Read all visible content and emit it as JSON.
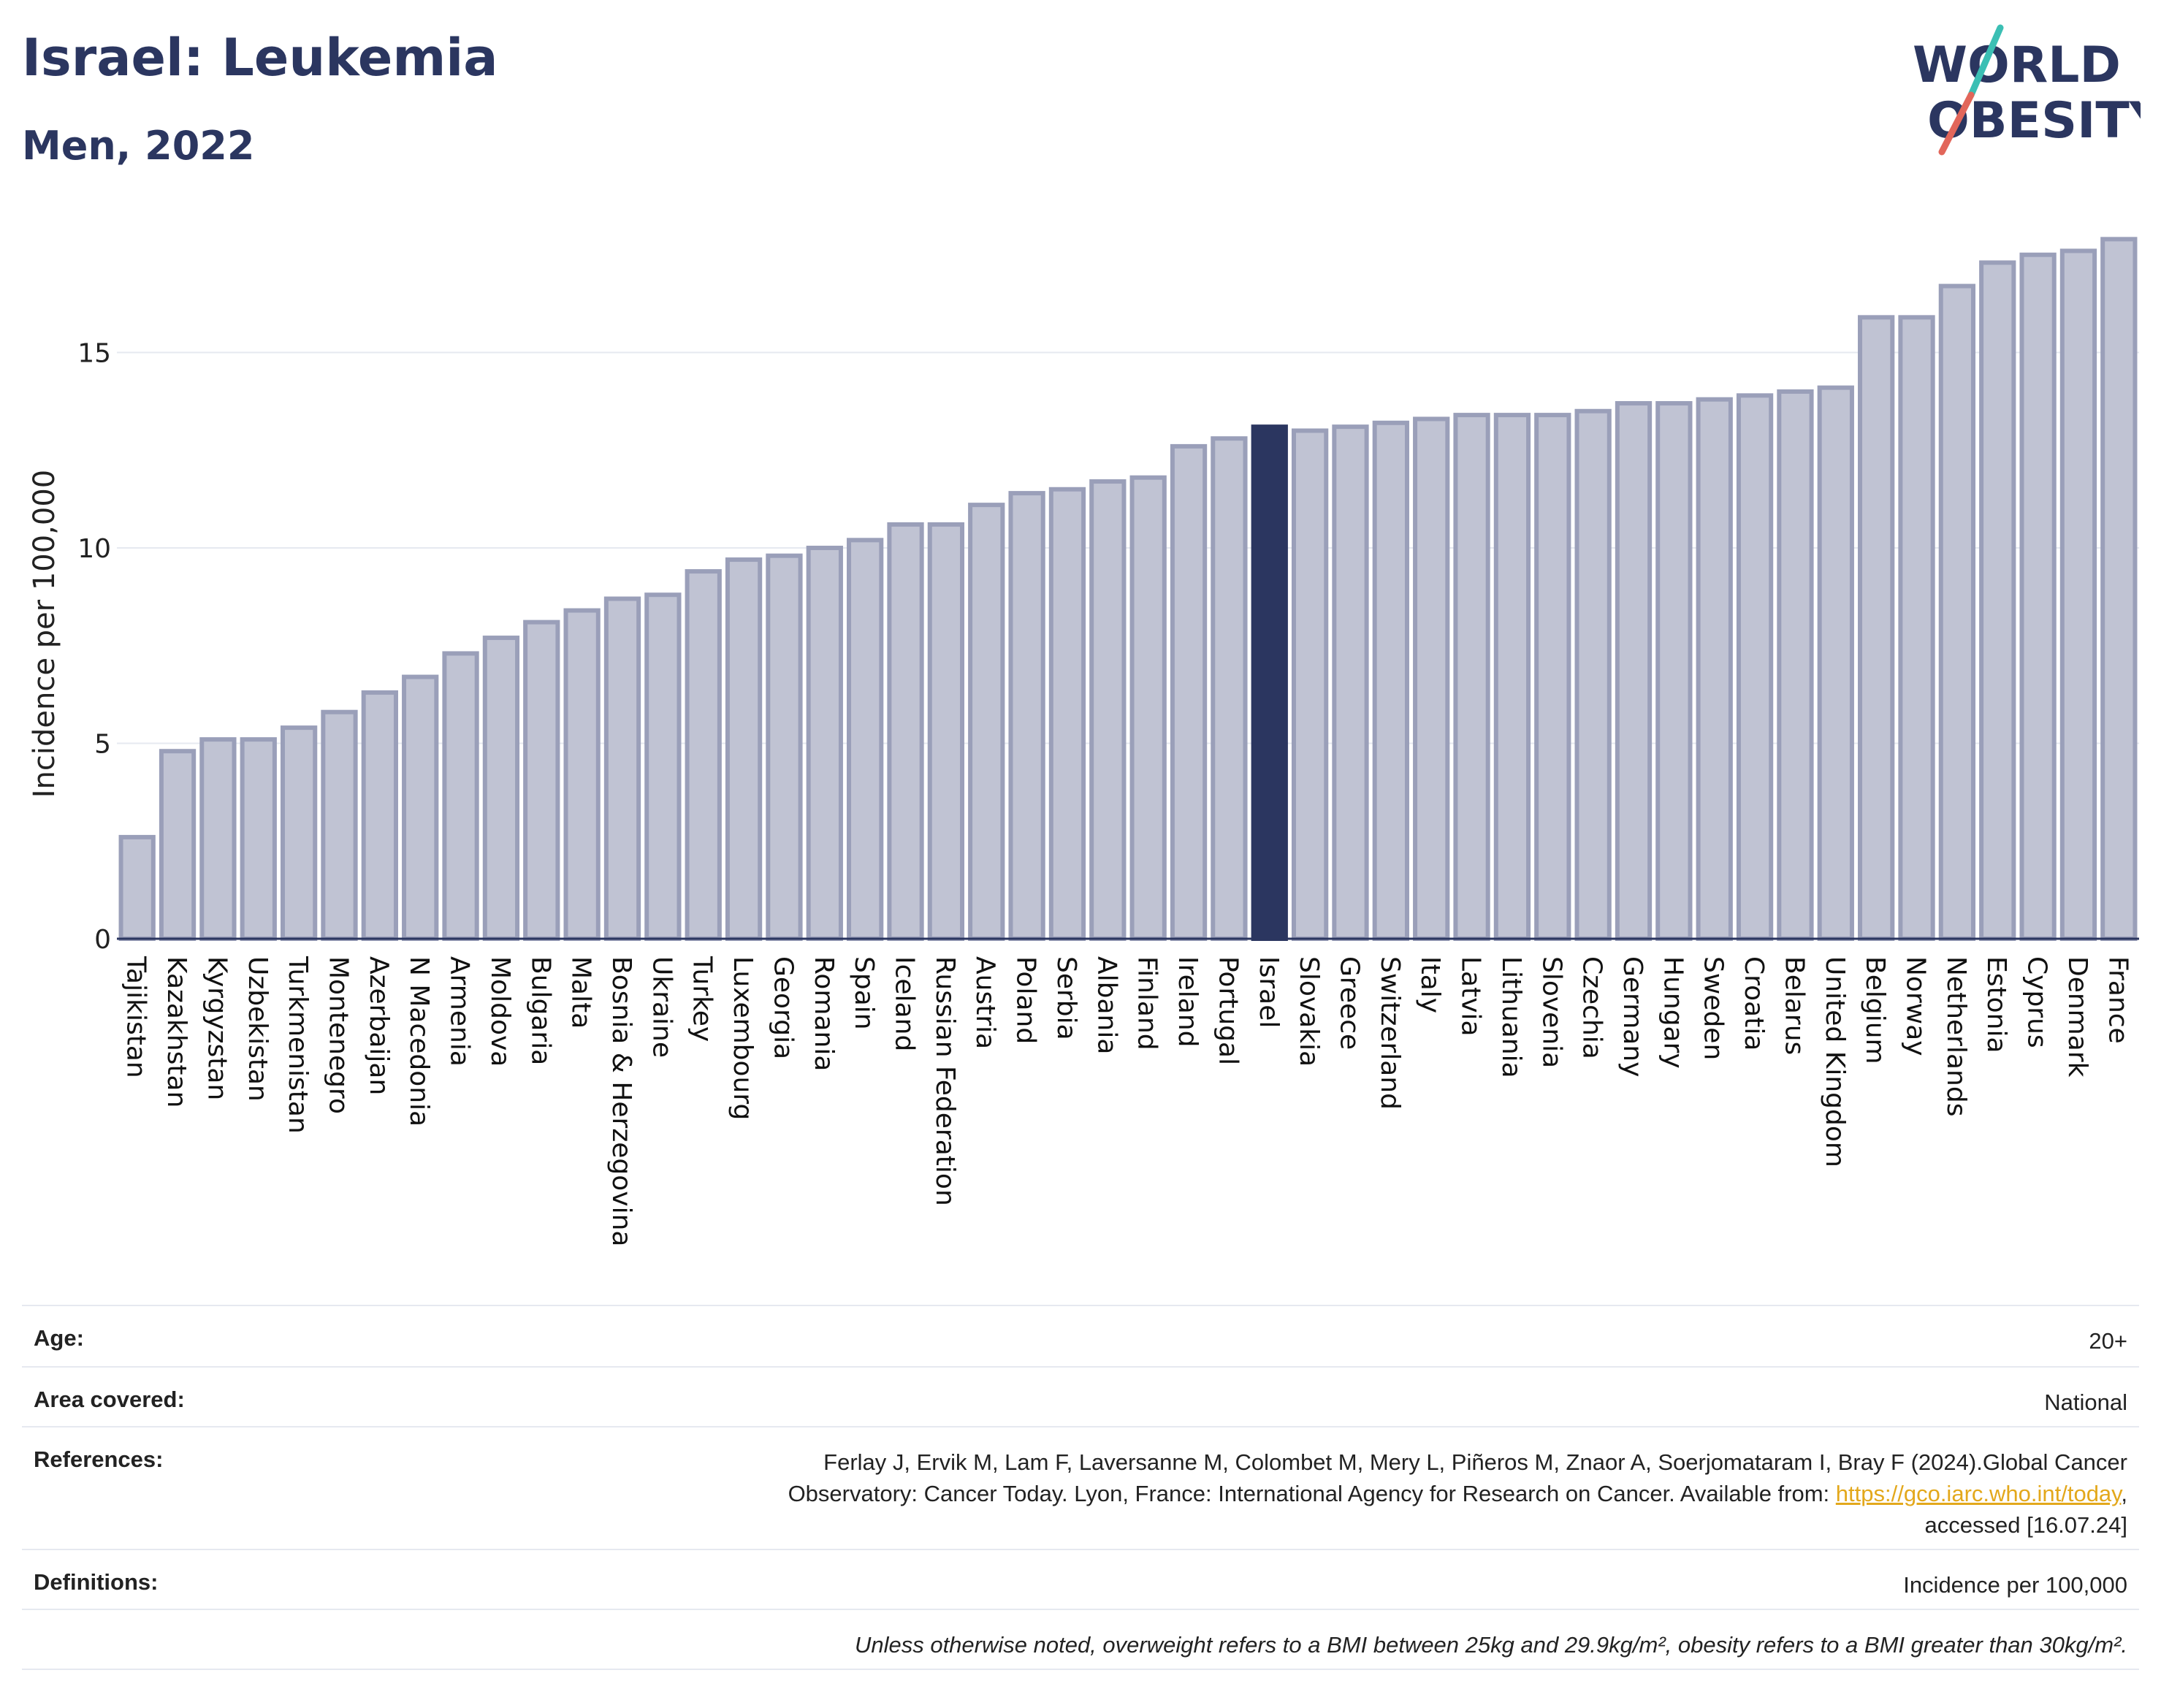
{
  "header": {
    "title": "Israel: Leukemia",
    "subtitle": "Men, 2022"
  },
  "logo": {
    "line1": "WORLD",
    "line2": "OBESITY"
  },
  "chart_data": {
    "type": "bar",
    "ylabel": "Incidence per 100,000",
    "ylim": [
      0,
      18
    ],
    "yticks": [
      0,
      5,
      10,
      15
    ],
    "grid": true,
    "highlight": "Israel",
    "colors": {
      "bar": "#c0c3d3",
      "bar_edge": "#9a9fb9",
      "highlight": "#2b3660",
      "grid": "#e6e9f0"
    },
    "categories": [
      "Tajikistan",
      "Kazakhstan",
      "Kyrgyzstan",
      "Uzbekistan",
      "Turkmenistan",
      "Montenegro",
      "Azerbaijan",
      "N Macedonia",
      "Armenia",
      "Moldova",
      "Bulgaria",
      "Malta",
      "Bosnia & Herzegovina",
      "Ukraine",
      "Turkey",
      "Luxembourg",
      "Georgia",
      "Romania",
      "Spain",
      "Iceland",
      "Russian Federation",
      "Austria",
      "Poland",
      "Serbia",
      "Albania",
      "Finland",
      "Ireland",
      "Portugal",
      "Israel",
      "Slovakia",
      "Greece",
      "Switzerland",
      "Italy",
      "Latvia",
      "Lithuania",
      "Slovenia",
      "Czechia",
      "Germany",
      "Hungary",
      "Sweden",
      "Croatia",
      "Belarus",
      "United Kingdom",
      "Belgium",
      "Norway",
      "Netherlands",
      "Estonia",
      "Cyprus",
      "Denmark",
      "France"
    ],
    "values": [
      2.6,
      4.8,
      5.1,
      5.1,
      5.4,
      5.8,
      6.3,
      6.7,
      7.3,
      7.7,
      8.1,
      8.4,
      8.7,
      8.8,
      9.4,
      9.7,
      9.8,
      10.0,
      10.2,
      10.6,
      10.6,
      11.1,
      11.4,
      11.5,
      11.7,
      11.8,
      12.6,
      12.8,
      13.1,
      13.0,
      13.1,
      13.2,
      13.3,
      13.4,
      13.4,
      13.4,
      13.5,
      13.7,
      13.7,
      13.8,
      13.9,
      14.0,
      14.1,
      15.9,
      15.9,
      16.7,
      17.3,
      17.5,
      17.6,
      17.9
    ]
  },
  "meta": {
    "age_label": "Age:",
    "age_value": "20+",
    "area_label": "Area covered:",
    "area_value": "National",
    "ref_label": "References:",
    "ref_line1": "Ferlay J, Ervik M, Lam F, Laversanne M, Colombet M, Mery L, Piñeros M, Znaor A, Soerjomataram I, Bray F (2024).Global Cancer",
    "ref_line2_pre": "Observatory: Cancer Today. Lyon, France: International Agency for Research on Cancer. Available from: ",
    "ref_link": "https://gco.iarc.who.int/today",
    "ref_line2_post": ",",
    "ref_line3": "accessed [16.07.24]",
    "def_label": "Definitions:",
    "def_value": "Incidence per 100,000",
    "note": "Unless otherwise noted, overweight refers to a BMI between 25kg and 29.9kg/m², obesity refers to a BMI greater than 30kg/m²."
  }
}
